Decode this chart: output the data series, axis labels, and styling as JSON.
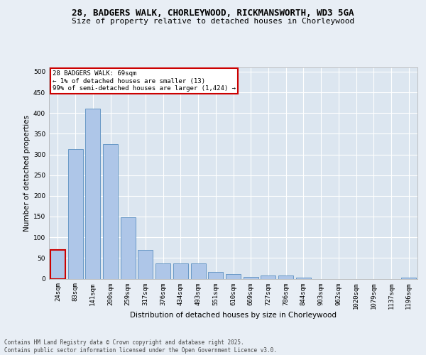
{
  "title_line1": "28, BADGERS WALK, CHORLEYWOOD, RICKMANSWORTH, WD3 5GA",
  "title_line2": "Size of property relative to detached houses in Chorleywood",
  "xlabel": "Distribution of detached houses by size in Chorleywood",
  "ylabel": "Number of detached properties",
  "categories": [
    "24sqm",
    "83sqm",
    "141sqm",
    "200sqm",
    "259sqm",
    "317sqm",
    "376sqm",
    "434sqm",
    "493sqm",
    "551sqm",
    "610sqm",
    "669sqm",
    "727sqm",
    "786sqm",
    "844sqm",
    "903sqm",
    "962sqm",
    "1020sqm",
    "1079sqm",
    "1137sqm",
    "1196sqm"
  ],
  "values": [
    70,
    313,
    410,
    325,
    149,
    70,
    37,
    37,
    37,
    17,
    12,
    5,
    7,
    7,
    3,
    0,
    0,
    0,
    0,
    0,
    3
  ],
  "bar_color": "#aec6e8",
  "bar_edge_color": "#5a8fc0",
  "highlight_index": 0,
  "highlight_bar_color": "#aec6e8",
  "highlight_edge_color": "#cc0000",
  "annotation_text": "28 BADGERS WALK: 69sqm\n← 1% of detached houses are smaller (13)\n99% of semi-detached houses are larger (1,424) →",
  "annotation_box_edge_color": "#cc0000",
  "annotation_fontsize": 6.5,
  "ylim": [
    0,
    510
  ],
  "yticks": [
    0,
    50,
    100,
    150,
    200,
    250,
    300,
    350,
    400,
    450,
    500
  ],
  "background_color": "#e8eef5",
  "plot_bg_color": "#dce6f0",
  "grid_color": "#ffffff",
  "footer_text": "Contains HM Land Registry data © Crown copyright and database right 2025.\nContains public sector information licensed under the Open Government Licence v3.0.",
  "title_fontsize": 9,
  "subtitle_fontsize": 8,
  "axis_label_fontsize": 7.5,
  "tick_fontsize": 6.5,
  "footer_fontsize": 5.5
}
